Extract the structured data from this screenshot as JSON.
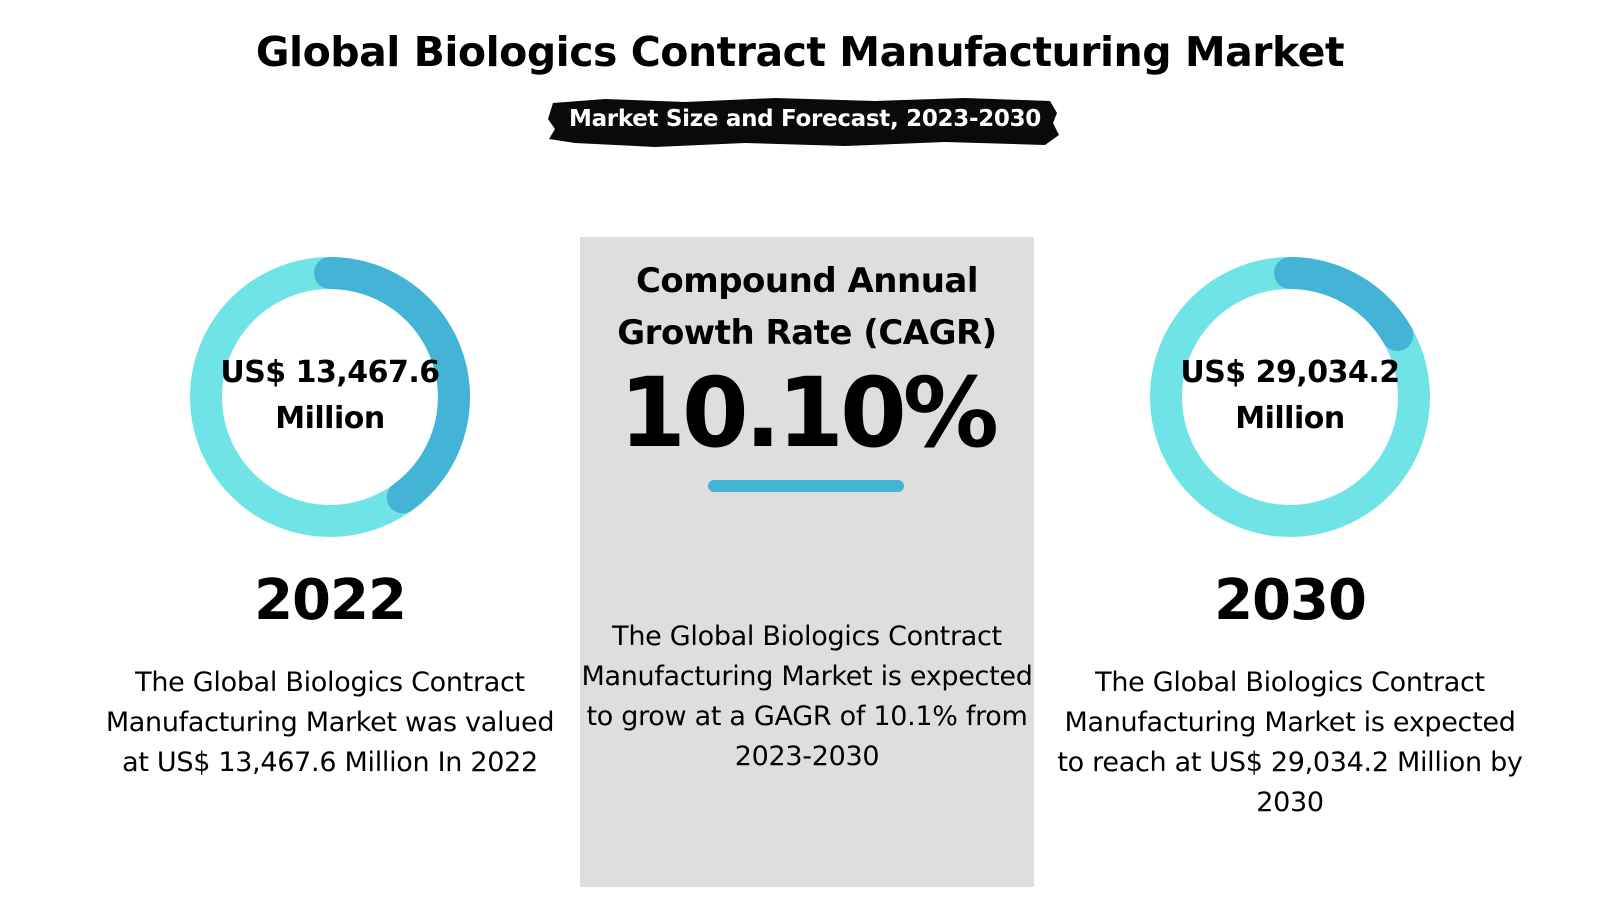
{
  "title": "Global Biologics Contract Manufacturing Market",
  "subtitle": "Market Size and Forecast, 2023-2030",
  "colors": {
    "ring_light": "#6fe3e6",
    "ring_dark": "#44b4d6",
    "panel_bg": "#dedede",
    "brush": "#0a0a0a"
  },
  "left": {
    "value_line1": "US$ 13,467.6",
    "value_line2": "Million",
    "year": "2022",
    "description": "The Global Biologics Contract Manufacturing Market was valued at US$ 13,467.6 Million In 2022"
  },
  "center": {
    "heading_line1": "Compound Annual",
    "heading_line2": "Growth Rate (CAGR)",
    "value": "10.10%",
    "description": "The Global Biologics Contract Manufacturing Market is expected to grow at a GAGR of 10.1% from 2023-2030"
  },
  "right": {
    "value_line1": "US$ 29,034.2",
    "value_line2": "Million",
    "year": "2030",
    "description": "The Global Biologics Contract Manufacturing Market is expected to reach at US$ 29,034.2 Million by 2030"
  }
}
